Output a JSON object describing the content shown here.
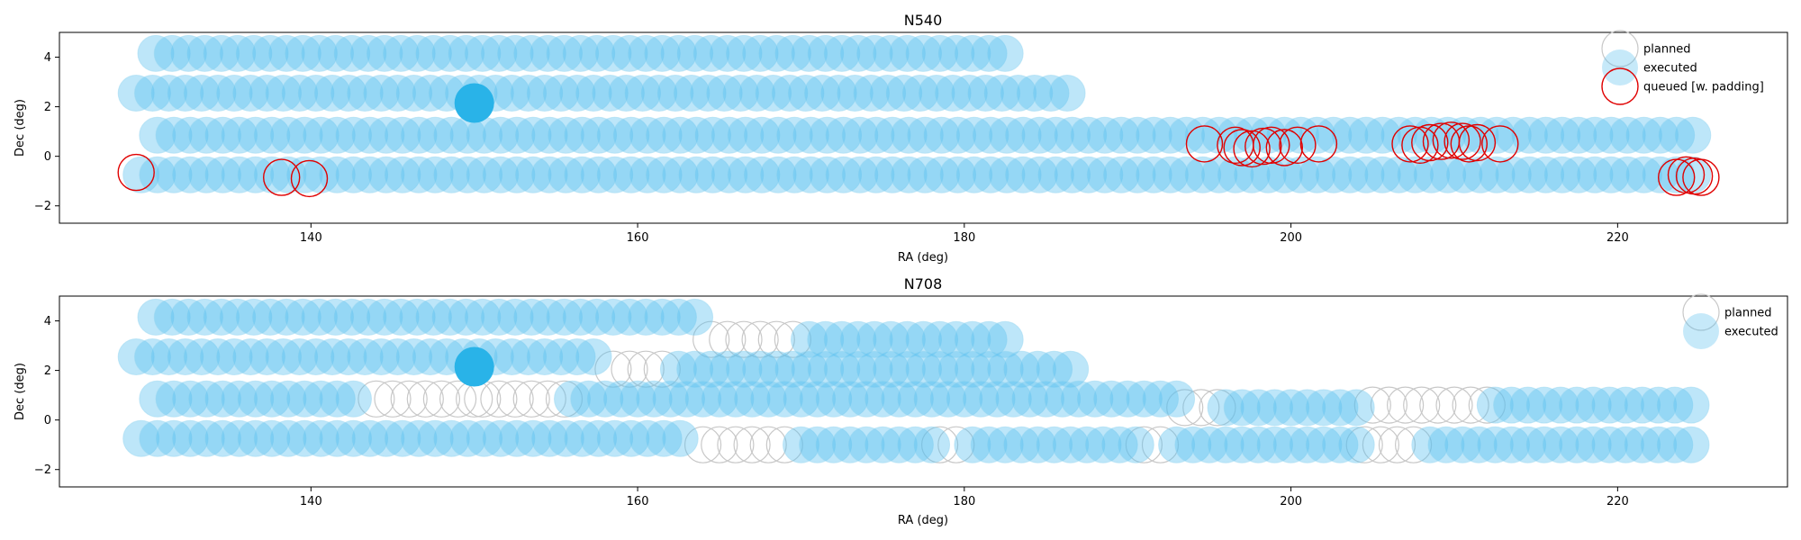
{
  "chart_data": [
    {
      "type": "scatter",
      "title": "N540",
      "xlabel": "RA (deg)",
      "ylabel": "Dec (deg)",
      "xlim": [
        124.6,
        230.4
      ],
      "ylim": [
        -2.7,
        5.0
      ],
      "xticks": [
        140,
        160,
        180,
        200,
        220
      ],
      "yticks": [
        -2,
        0,
        2,
        4
      ],
      "grid": false,
      "legend": {
        "placement": "upper right",
        "entries": [
          "planned",
          "executed",
          "queued [w. padding]"
        ]
      },
      "colors": {
        "planned": "#c8c8c8",
        "executed": "#5bc0ef",
        "queued": "#e00000",
        "highlight": "#29b3e8"
      },
      "highlight_point": [
        150.0,
        2.15
      ],
      "rows": [
        {
          "dec": 4.15,
          "x_start": 130.5,
          "x_end": 183.0,
          "status": "executed"
        },
        {
          "dec": 2.55,
          "x_start": 129.3,
          "x_end": 187.0,
          "status": "executed"
        },
        {
          "dec": 0.85,
          "x_start": 130.6,
          "x_end": 224.8,
          "status": "executed"
        },
        {
          "dec": -0.75,
          "x_start": 129.6,
          "x_end": 225.2,
          "status": "executed"
        }
      ],
      "queued_points": [
        [
          129.3,
          -0.65
        ],
        [
          138.2,
          -0.85
        ],
        [
          139.9,
          -0.9
        ],
        [
          194.7,
          0.5
        ],
        [
          196.6,
          0.45
        ],
        [
          197.0,
          0.35
        ],
        [
          197.6,
          0.3
        ],
        [
          198.3,
          0.4
        ],
        [
          198.8,
          0.45
        ],
        [
          199.6,
          0.35
        ],
        [
          200.4,
          0.45
        ],
        [
          201.7,
          0.5
        ],
        [
          207.3,
          0.5
        ],
        [
          207.9,
          0.45
        ],
        [
          208.5,
          0.55
        ],
        [
          209.2,
          0.6
        ],
        [
          209.8,
          0.65
        ],
        [
          210.5,
          0.6
        ],
        [
          210.9,
          0.5
        ],
        [
          211.4,
          0.55
        ],
        [
          212.8,
          0.5
        ],
        [
          223.6,
          -0.85
        ],
        [
          224.2,
          -0.75
        ],
        [
          224.7,
          -0.8
        ],
        [
          225.1,
          -0.85
        ]
      ]
    },
    {
      "type": "scatter",
      "title": "N708",
      "xlabel": "RA (deg)",
      "ylabel": "Dec (deg)",
      "xlim": [
        124.6,
        230.4
      ],
      "ylim": [
        -2.7,
        5.0
      ],
      "xticks": [
        140,
        160,
        180,
        200,
        220
      ],
      "yticks": [
        -2,
        0,
        2,
        4
      ],
      "grid": false,
      "legend": {
        "placement": "upper right",
        "entries": [
          "planned",
          "executed"
        ]
      },
      "colors": {
        "planned": "#c8c8c8",
        "executed": "#5bc0ef",
        "highlight": "#29b3e8"
      },
      "highlight_point": [
        150.0,
        2.15
      ],
      "rows": [
        {
          "dec": 4.15,
          "x_start": 130.5,
          "x_end": 163.5,
          "status": "executed"
        },
        {
          "dec": 3.25,
          "x_start": 164.5,
          "x_end": 170.0,
          "status": "planned"
        },
        {
          "dec": 3.25,
          "x_start": 170.5,
          "x_end": 183.0,
          "status": "executed"
        },
        {
          "dec": 2.55,
          "x_start": 129.3,
          "x_end": 158.0,
          "status": "executed"
        },
        {
          "dec": 2.05,
          "x_start": 158.5,
          "x_end": 162.0,
          "status": "planned"
        },
        {
          "dec": 2.05,
          "x_start": 162.5,
          "x_end": 187.0,
          "status": "executed"
        },
        {
          "dec": 0.85,
          "x_start": 130.6,
          "x_end": 143.5,
          "status": "executed"
        },
        {
          "dec": 0.85,
          "x_start": 144.0,
          "x_end": 150.0,
          "status": "planned"
        },
        {
          "dec": 0.85,
          "x_start": 150.5,
          "x_end": 155.5,
          "status": "planned"
        },
        {
          "dec": 0.85,
          "x_start": 156.0,
          "x_end": 193.0,
          "status": "executed"
        },
        {
          "dec": 0.5,
          "x_start": 193.5,
          "x_end": 195.5,
          "status": "planned"
        },
        {
          "dec": 0.5,
          "x_start": 196.0,
          "x_end": 204.5,
          "status": "executed"
        },
        {
          "dec": 0.6,
          "x_start": 205.0,
          "x_end": 212.0,
          "status": "planned"
        },
        {
          "dec": 0.6,
          "x_start": 212.5,
          "x_end": 224.8,
          "status": "executed"
        },
        {
          "dec": -0.75,
          "x_start": 129.6,
          "x_end": 163.0,
          "status": "executed"
        },
        {
          "dec": -1.0,
          "x_start": 164.0,
          "x_end": 169.5,
          "status": "planned"
        },
        {
          "dec": -1.0,
          "x_start": 170.0,
          "x_end": 178.0,
          "status": "executed"
        },
        {
          "dec": -1.0,
          "x_start": 178.5,
          "x_end": 180.0,
          "status": "planned"
        },
        {
          "dec": -1.0,
          "x_start": 180.5,
          "x_end": 190.5,
          "status": "executed"
        },
        {
          "dec": -1.0,
          "x_start": 191.0,
          "x_end": 192.5,
          "status": "planned"
        },
        {
          "dec": -1.0,
          "x_start": 193.0,
          "x_end": 204.0,
          "status": "executed"
        },
        {
          "dec": -1.0,
          "x_start": 204.5,
          "x_end": 208.0,
          "status": "planned"
        },
        {
          "dec": -1.0,
          "x_start": 208.5,
          "x_end": 225.2,
          "status": "executed"
        }
      ]
    }
  ]
}
